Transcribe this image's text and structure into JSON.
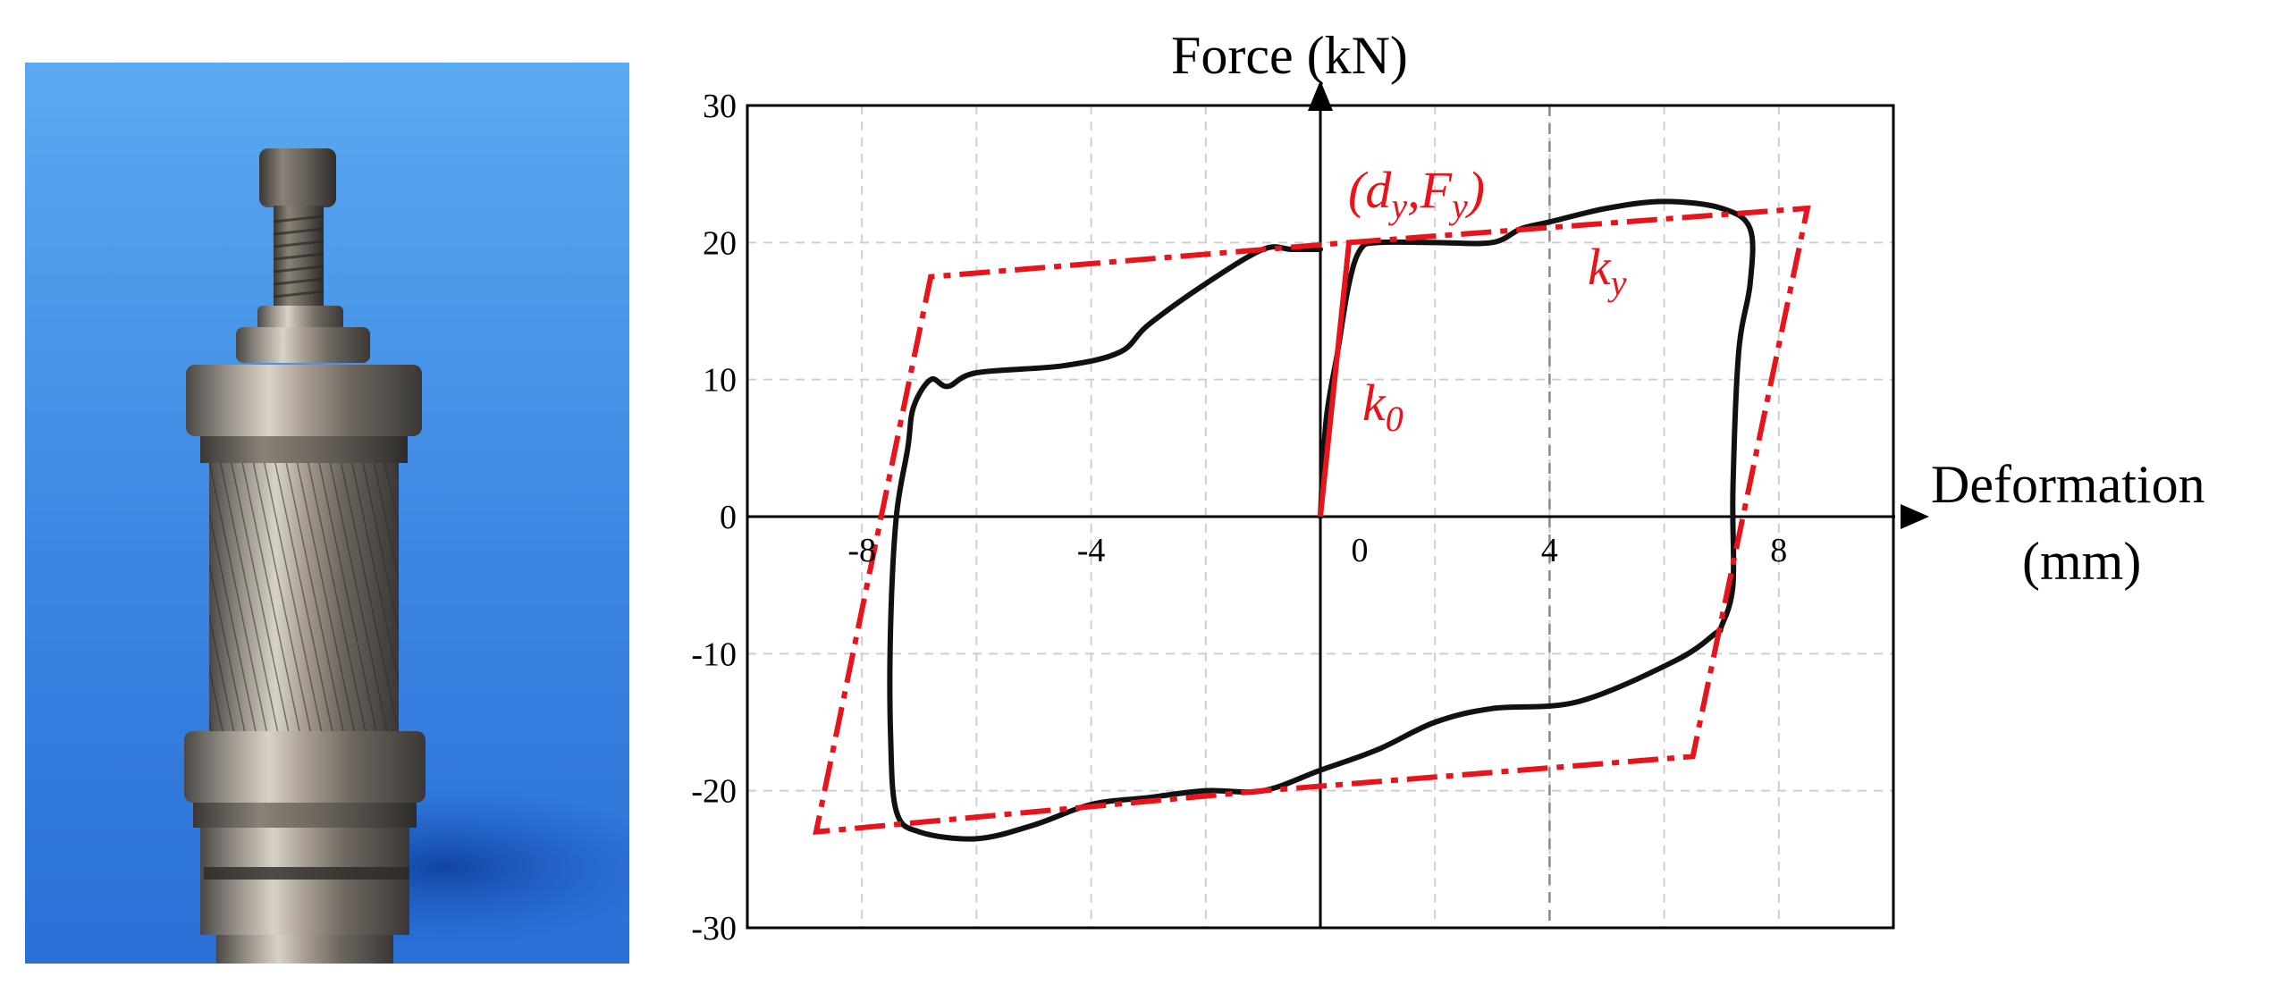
{
  "colors": {
    "curve": "#111111",
    "bilinear": "#e8141c",
    "grid": "#cfcfcf",
    "photo_bg_top": "#57a8ef",
    "photo_bg_bottom": "#1f63cc"
  },
  "photo": {
    "subject_icon": "damper-specimen-photo"
  },
  "chart_data": {
    "type": "line",
    "xlabel_line1": "Deformation",
    "xlabel_line2": "(mm)",
    "ylabel": "Force (kN)",
    "xlim": [
      -10,
      10
    ],
    "ylim": [
      -30,
      30
    ],
    "xticks": [
      -8,
      -4,
      0,
      4,
      8
    ],
    "xtick_labels": [
      "-8",
      "-4",
      "0",
      "4",
      "8"
    ],
    "yticks": [
      30,
      20,
      10,
      0,
      -10,
      -20,
      -30
    ],
    "ytick_labels": [
      "30",
      "20",
      "10",
      "0",
      "-10",
      "-20",
      "-30"
    ],
    "grid": true,
    "series": [
      {
        "style": "solid",
        "x": [
          0,
          0.1,
          0.3,
          0.5,
          0.7,
          1.0,
          2.0,
          3.0,
          3.5,
          4.0,
          5.0,
          6.0,
          7.0,
          7.5,
          7.5,
          7.3,
          7.2,
          7.2,
          7.0,
          6.9,
          6.2,
          4.5,
          3.0,
          2.0,
          1.0,
          0,
          -1.0,
          -2.0,
          -3.0,
          -4.0,
          -5.0,
          -6.0,
          -7.0,
          -7.4,
          -7.5,
          -7.5,
          -7.4,
          -7.2,
          -7.1,
          -6.8,
          -6.5,
          -6.0,
          -4.5,
          -3.5,
          -3.0,
          -2.0,
          -1.0,
          -0.5,
          0
        ],
        "y": [
          0,
          7,
          12,
          17,
          19.5,
          20,
          20,
          20,
          21,
          21.5,
          22.5,
          23,
          22.5,
          21,
          17,
          12,
          2,
          -5,
          -8,
          -8.5,
          -10.5,
          -13.5,
          -14,
          -15,
          -17,
          -18.5,
          -20,
          -20,
          -20.5,
          -21,
          -22.5,
          -23.5,
          -23,
          -21.5,
          -16,
          -8,
          0,
          5,
          8,
          10,
          9.5,
          10.5,
          11,
          12,
          14,
          17,
          19.5,
          19.5,
          19.5
        ]
      },
      {
        "style": "dashed",
        "x": [
          0,
          0.5,
          8.5,
          6.5,
          -1.0,
          -8.8,
          -6.8,
          0.5
        ],
        "y": [
          0,
          20,
          22.5,
          -17.5,
          -20,
          -23,
          17.5,
          20
        ]
      }
    ],
    "annotations": [
      {
        "x": -1.5,
        "y": 10,
        "label": "k",
        "sub": "0"
      },
      {
        "x": 0,
        "y": 21,
        "label_open": "(d",
        "sub1": "y",
        "label_mid": ",F",
        "sub2": "y",
        "label_close": ")"
      },
      {
        "x": 5,
        "y": 16,
        "label": "k",
        "sub": "y"
      }
    ]
  }
}
